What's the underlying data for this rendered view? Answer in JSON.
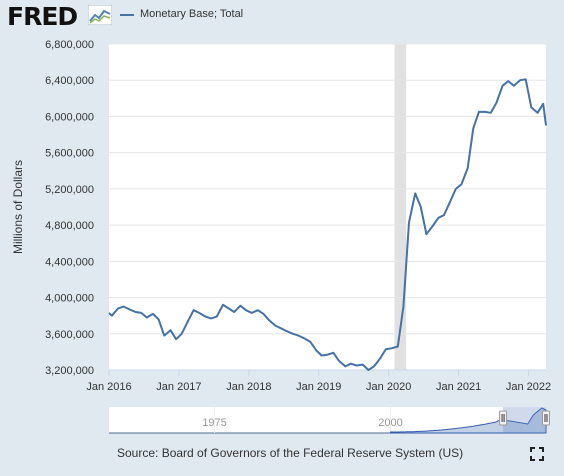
{
  "header": {
    "logo_text": "FRED",
    "logo_icon": "trend-chart-icon",
    "legend_label": "Monetary Base; Total"
  },
  "footer": {
    "source": "Source: Board of Governors of the Federal Reserve System (US)",
    "expand_icon": "fullscreen-icon"
  },
  "colors": {
    "line": "#4572a7",
    "plot_background": "#ffffff",
    "page_background": "#e1e9f0",
    "recession": "#e1e1e1",
    "navigator_fill": "#c2d1e5"
  },
  "navigator": {
    "labels": [
      "1975",
      "2000"
    ],
    "range": [
      1960,
      2022.1
    ]
  },
  "chart_data": {
    "type": "line",
    "title": "",
    "xlabel": "",
    "ylabel": "Millions of Dollars",
    "xlim": [
      2016.0,
      2022.25
    ],
    "ylim": [
      3200000,
      6800000
    ],
    "y_ticks": [
      3200000,
      3600000,
      4000000,
      4400000,
      4800000,
      5200000,
      5600000,
      6000000,
      6400000,
      6800000
    ],
    "y_tick_labels": [
      "3,200,000",
      "3,600,000",
      "4,000,000",
      "4,400,000",
      "4,800,000",
      "5,200,000",
      "5,600,000",
      "6,000,000",
      "6,400,000",
      "6,800,000"
    ],
    "x_ticks": [
      2016,
      2017,
      2018,
      2019,
      2020,
      2021,
      2022
    ],
    "x_tick_labels": [
      "Jan 2016",
      "Jan 2017",
      "Jan 2018",
      "Jan 2019",
      "Jan 2020",
      "Jan 2021",
      "Jan 2022"
    ],
    "grid": "horizontal",
    "legend": "top-left",
    "recessions": [
      [
        2020.083,
        2020.25
      ]
    ],
    "series": [
      {
        "name": "Monetary Base; Total",
        "points": [
          [
            2016.0,
            3830000
          ],
          [
            2016.04,
            3800000
          ],
          [
            2016.13,
            3880000
          ],
          [
            2016.21,
            3900000
          ],
          [
            2016.29,
            3870000
          ],
          [
            2016.38,
            3840000
          ],
          [
            2016.46,
            3830000
          ],
          [
            2016.54,
            3780000
          ],
          [
            2016.63,
            3820000
          ],
          [
            2016.71,
            3760000
          ],
          [
            2016.79,
            3580000
          ],
          [
            2016.88,
            3640000
          ],
          [
            2016.96,
            3540000
          ],
          [
            2017.04,
            3600000
          ],
          [
            2017.13,
            3740000
          ],
          [
            2017.21,
            3860000
          ],
          [
            2017.29,
            3830000
          ],
          [
            2017.38,
            3790000
          ],
          [
            2017.46,
            3770000
          ],
          [
            2017.54,
            3790000
          ],
          [
            2017.63,
            3920000
          ],
          [
            2017.71,
            3880000
          ],
          [
            2017.79,
            3840000
          ],
          [
            2017.88,
            3910000
          ],
          [
            2017.96,
            3860000
          ],
          [
            2018.04,
            3830000
          ],
          [
            2018.13,
            3860000
          ],
          [
            2018.21,
            3820000
          ],
          [
            2018.29,
            3750000
          ],
          [
            2018.38,
            3690000
          ],
          [
            2018.46,
            3660000
          ],
          [
            2018.54,
            3630000
          ],
          [
            2018.63,
            3600000
          ],
          [
            2018.71,
            3580000
          ],
          [
            2018.79,
            3550000
          ],
          [
            2018.88,
            3510000
          ],
          [
            2018.96,
            3420000
          ],
          [
            2019.04,
            3360000
          ],
          [
            2019.13,
            3370000
          ],
          [
            2019.21,
            3390000
          ],
          [
            2019.29,
            3300000
          ],
          [
            2019.38,
            3240000
          ],
          [
            2019.46,
            3270000
          ],
          [
            2019.54,
            3250000
          ],
          [
            2019.63,
            3260000
          ],
          [
            2019.71,
            3200000
          ],
          [
            2019.79,
            3240000
          ],
          [
            2019.88,
            3330000
          ],
          [
            2019.96,
            3430000
          ],
          [
            2020.04,
            3440000
          ],
          [
            2020.13,
            3460000
          ],
          [
            2020.21,
            3900000
          ],
          [
            2020.29,
            4830000
          ],
          [
            2020.38,
            5150000
          ],
          [
            2020.46,
            5000000
          ],
          [
            2020.54,
            4700000
          ],
          [
            2020.63,
            4790000
          ],
          [
            2020.71,
            4880000
          ],
          [
            2020.79,
            4910000
          ],
          [
            2020.88,
            5060000
          ],
          [
            2020.96,
            5200000
          ],
          [
            2021.04,
            5250000
          ],
          [
            2021.13,
            5430000
          ],
          [
            2021.21,
            5870000
          ],
          [
            2021.29,
            6050000
          ],
          [
            2021.38,
            6050000
          ],
          [
            2021.46,
            6040000
          ],
          [
            2021.54,
            6150000
          ],
          [
            2021.63,
            6340000
          ],
          [
            2021.71,
            6390000
          ],
          [
            2021.79,
            6340000
          ],
          [
            2021.88,
            6400000
          ],
          [
            2021.96,
            6410000
          ],
          [
            2022.04,
            6100000
          ],
          [
            2022.13,
            6040000
          ],
          [
            2022.21,
            6140000
          ],
          [
            2022.25,
            5900000
          ]
        ]
      }
    ]
  }
}
